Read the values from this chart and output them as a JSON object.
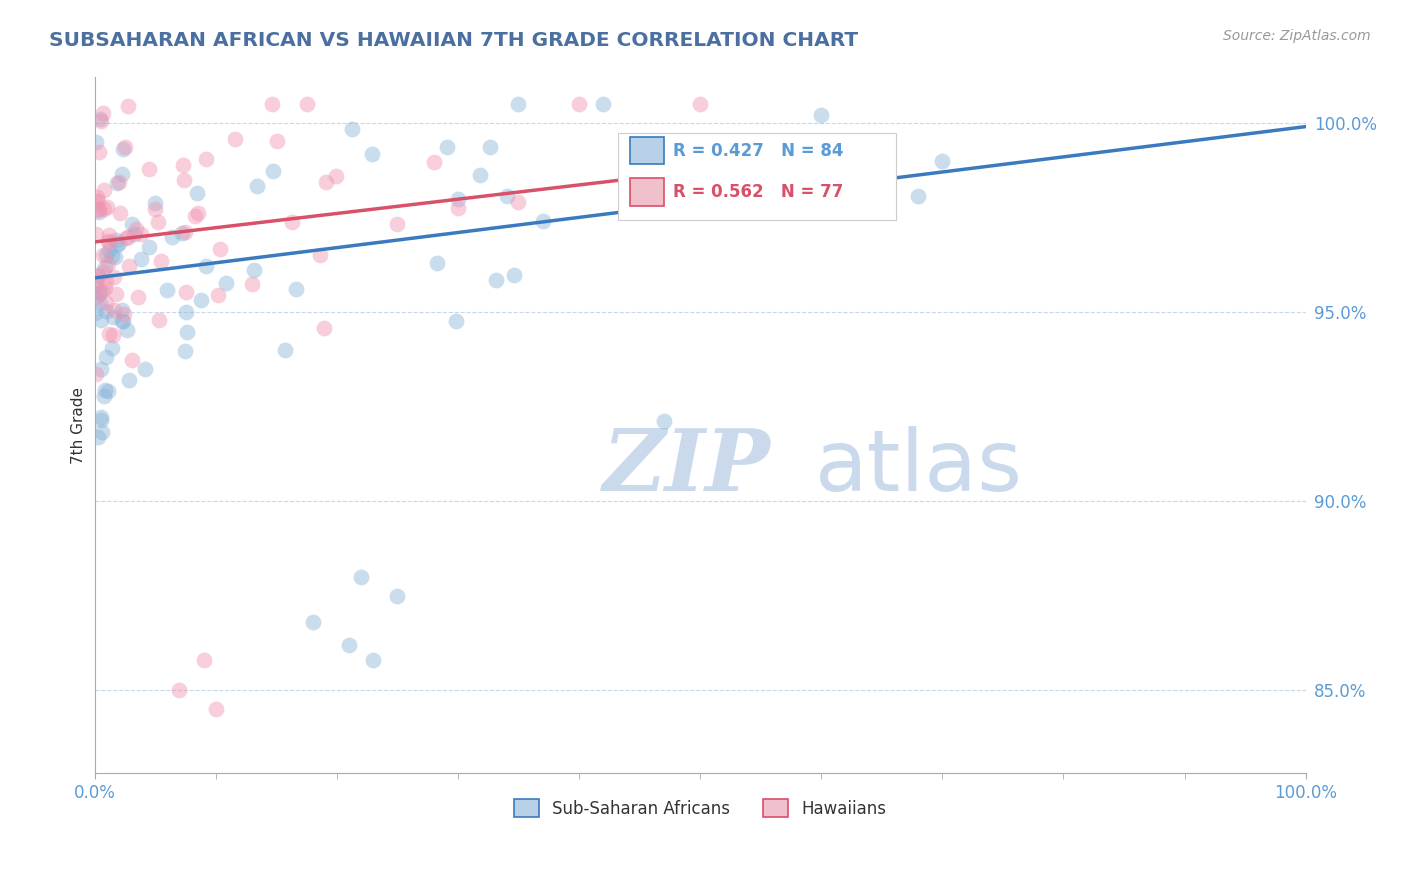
{
  "title": "SUBSAHARAN AFRICAN VS HAWAIIAN 7TH GRADE CORRELATION CHART",
  "source_text": "Source: ZipAtlas.com",
  "ylabel": "7th Grade",
  "legend_label1": "Sub-Saharan Africans",
  "legend_label2": "Hawaiians",
  "r1": 0.427,
  "n1": 84,
  "r2": 0.562,
  "n2": 77,
  "color_blue": "#8ab4d8",
  "color_pink": "#f093b0",
  "line_blue": "#3a7abf",
  "line_pink": "#d9506a",
  "title_color": "#4a6fa0",
  "axis_color": "#5b9bd5",
  "watermark_color": "#cad9ec",
  "xlim": [
    0.0,
    1.0
  ],
  "ylim": [
    0.828,
    1.012
  ],
  "yticks": [
    0.85,
    0.9,
    0.95,
    1.0
  ],
  "ytick_labels": [
    "85.0%",
    "90.0%",
    "95.0%",
    "100.0%"
  ],
  "xtick_labels": [
    "0.0%",
    "100.0%"
  ],
  "grid_color": "#c8d8e8",
  "legend_box_color_blue": "#b8d0e8",
  "legend_box_color_pink": "#f0c0cc",
  "blue_seed": 42,
  "pink_seed": 77
}
